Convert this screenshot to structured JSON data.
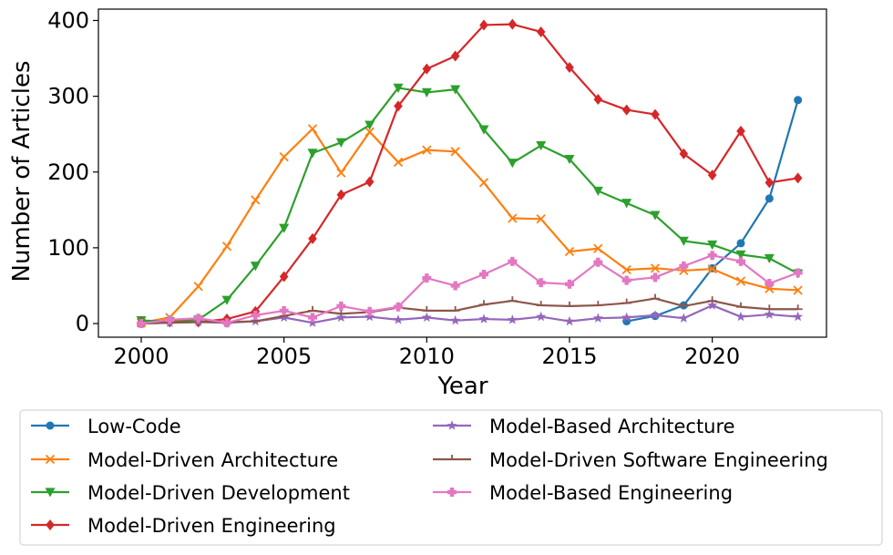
{
  "chart_data": {
    "type": "line",
    "title": "",
    "xlabel": "Year",
    "ylabel": "Number of Articles",
    "xlim": [
      1998.5,
      2024.0
    ],
    "ylim": [
      -18,
      415
    ],
    "x_ticks": [
      2000,
      2005,
      2010,
      2015,
      2020
    ],
    "y_ticks": [
      0,
      100,
      200,
      300,
      400
    ],
    "grid": false,
    "legend_position": "below",
    "series": [
      {
        "name": "Low-Code",
        "color": "#1f77b4",
        "marker": "circle",
        "x": [
          2017,
          2018,
          2019,
          2020,
          2021,
          2022,
          2023
        ],
        "values": [
          3,
          10,
          24,
          73,
          106,
          165,
          295
        ]
      },
      {
        "name": "Model-Driven Architecture",
        "color": "#ff7f0e",
        "marker": "x",
        "x": [
          2000,
          2001,
          2002,
          2003,
          2004,
          2005,
          2006,
          2007,
          2008,
          2009,
          2010,
          2011,
          2012,
          2013,
          2014,
          2015,
          2016,
          2017,
          2018,
          2019,
          2020,
          2021,
          2022,
          2023
        ],
        "values": [
          1,
          8,
          49,
          102,
          163,
          220,
          257,
          199,
          253,
          213,
          229,
          227,
          186,
          139,
          138,
          95,
          99,
          71,
          73,
          70,
          72,
          56,
          46,
          44
        ]
      },
      {
        "name": "Model-Driven Development",
        "color": "#2ca02c",
        "marker": "triangle-down",
        "x": [
          2000,
          2001,
          2002,
          2003,
          2004,
          2005,
          2006,
          2007,
          2008,
          2009,
          2010,
          2011,
          2012,
          2013,
          2014,
          2015,
          2016,
          2017,
          2018,
          2019,
          2020,
          2021,
          2022,
          2023
        ],
        "values": [
          4,
          3,
          5,
          31,
          76,
          126,
          225,
          239,
          262,
          311,
          305,
          309,
          256,
          212,
          235,
          217,
          175,
          159,
          143,
          109,
          104,
          91,
          86,
          66
        ]
      },
      {
        "name": "Model-Driven Engineering",
        "color": "#d62728",
        "marker": "diamond",
        "x": [
          2000,
          2001,
          2002,
          2003,
          2004,
          2005,
          2006,
          2007,
          2008,
          2009,
          2010,
          2011,
          2012,
          2013,
          2014,
          2015,
          2016,
          2017,
          2018,
          2019,
          2020,
          2021,
          2022,
          2023
        ],
        "values": [
          1,
          2,
          2,
          6,
          16,
          62,
          112,
          170,
          187,
          287,
          336,
          353,
          394,
          395,
          385,
          338,
          296,
          282,
          276,
          224,
          196,
          254,
          186,
          192
        ]
      },
      {
        "name": "Model-Based Architecture",
        "color": "#9467bd",
        "marker": "star",
        "x": [
          2000,
          2001,
          2002,
          2003,
          2004,
          2005,
          2006,
          2007,
          2008,
          2009,
          2010,
          2011,
          2012,
          2013,
          2014,
          2015,
          2016,
          2017,
          2018,
          2019,
          2020,
          2021,
          2022,
          2023
        ],
        "values": [
          0,
          1,
          2,
          1,
          3,
          8,
          1,
          8,
          9,
          5,
          8,
          4,
          6,
          5,
          9,
          3,
          7,
          8,
          11,
          7,
          24,
          9,
          12,
          9
        ]
      },
      {
        "name": "Model-Driven Software Engineering",
        "color": "#8c564b",
        "marker": "tri",
        "x": [
          2000,
          2001,
          2002,
          2003,
          2004,
          2005,
          2006,
          2007,
          2008,
          2009,
          2010,
          2011,
          2012,
          2013,
          2014,
          2015,
          2016,
          2017,
          2018,
          2019,
          2020,
          2021,
          2022,
          2023
        ],
        "values": [
          0,
          1,
          2,
          2,
          3,
          10,
          17,
          13,
          15,
          21,
          17,
          17,
          25,
          30,
          24,
          23,
          24,
          27,
          33,
          23,
          30,
          22,
          19,
          19
        ]
      },
      {
        "name": "Model-Based Engineering",
        "color": "#e377c2",
        "marker": "plus",
        "x": [
          2000,
          2001,
          2002,
          2003,
          2004,
          2005,
          2006,
          2007,
          2008,
          2009,
          2010,
          2011,
          2012,
          2013,
          2014,
          2015,
          2016,
          2017,
          2018,
          2019,
          2020,
          2021,
          2022,
          2023
        ],
        "values": [
          0,
          5,
          7,
          1,
          11,
          17,
          8,
          23,
          16,
          22,
          60,
          50,
          65,
          82,
          54,
          52,
          81,
          57,
          61,
          76,
          90,
          82,
          53,
          67
        ]
      }
    ]
  }
}
